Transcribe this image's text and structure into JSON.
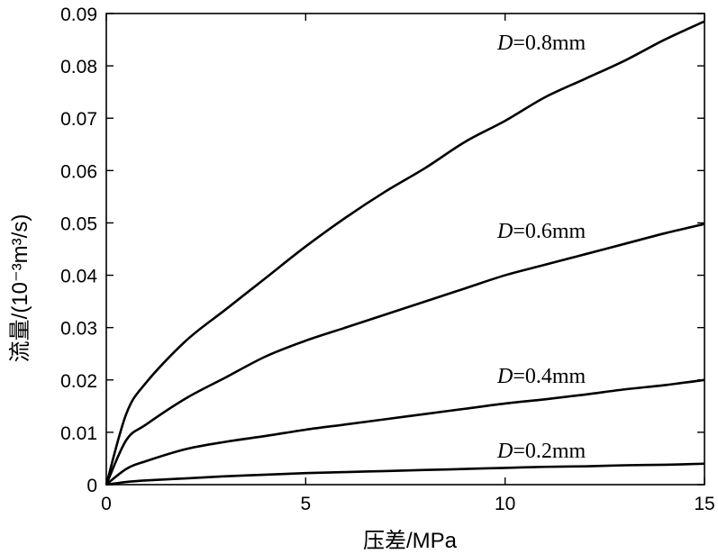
{
  "chart_data": {
    "type": "line",
    "title": "",
    "xlabel": "压差/MPa",
    "ylabel": "流量/(10⁻³m³/s)",
    "xlim": [
      0,
      15
    ],
    "ylim": [
      0,
      0.09
    ],
    "xticks": [
      "0",
      "5",
      "10",
      "15"
    ],
    "yticks": [
      "0",
      "0.01",
      "0.02",
      "0.03",
      "0.04",
      "0.05",
      "0.06",
      "0.07",
      "0.08",
      "0.09"
    ],
    "grid": false,
    "legend": "none",
    "line_color": "#000000",
    "series": [
      {
        "name": "D=0.8mm",
        "label_var": "D",
        "label_rest": "=0.8mm",
        "x": [
          0,
          0.5,
          1,
          2,
          3,
          4,
          5,
          6,
          7,
          8,
          9,
          10,
          11,
          12,
          13,
          14,
          15
        ],
        "y": [
          0,
          0.0135,
          0.0195,
          0.0275,
          0.0335,
          0.0395,
          0.0455,
          0.051,
          0.056,
          0.0605,
          0.0655,
          0.0695,
          0.074,
          0.0775,
          0.081,
          0.085,
          0.0885
        ]
      },
      {
        "name": "D=0.6mm",
        "label_var": "D",
        "label_rest": "=0.6mm",
        "x": [
          0,
          0.5,
          1,
          2,
          3,
          4,
          5,
          6,
          7,
          8,
          9,
          10,
          11,
          12,
          13,
          14,
          15
        ],
        "y": [
          0,
          0.0085,
          0.0115,
          0.0165,
          0.0205,
          0.0245,
          0.0275,
          0.03,
          0.0325,
          0.035,
          0.0375,
          0.04,
          0.042,
          0.044,
          0.046,
          0.048,
          0.0498
        ]
      },
      {
        "name": "D=0.4mm",
        "label_var": "D",
        "label_rest": "=0.4mm",
        "x": [
          0,
          0.5,
          1,
          2,
          3,
          4,
          5,
          6,
          7,
          8,
          9,
          10,
          11,
          12,
          13,
          14,
          15
        ],
        "y": [
          0,
          0.003,
          0.0045,
          0.0068,
          0.0082,
          0.0093,
          0.0105,
          0.0115,
          0.0125,
          0.0135,
          0.0145,
          0.0155,
          0.0163,
          0.0172,
          0.0182,
          0.019,
          0.02
        ]
      },
      {
        "name": "D=0.2mm",
        "label_var": "D",
        "label_rest": "=0.2mm",
        "x": [
          0,
          0.5,
          1,
          2,
          3,
          4,
          5,
          6,
          7,
          8,
          9,
          10,
          11,
          12,
          13,
          14,
          15
        ],
        "y": [
          0,
          0.0005,
          0.0008,
          0.0012,
          0.0016,
          0.0019,
          0.0022,
          0.0024,
          0.0026,
          0.0028,
          0.003,
          0.0032,
          0.0034,
          0.0035,
          0.0037,
          0.0038,
          0.004
        ]
      }
    ]
  }
}
